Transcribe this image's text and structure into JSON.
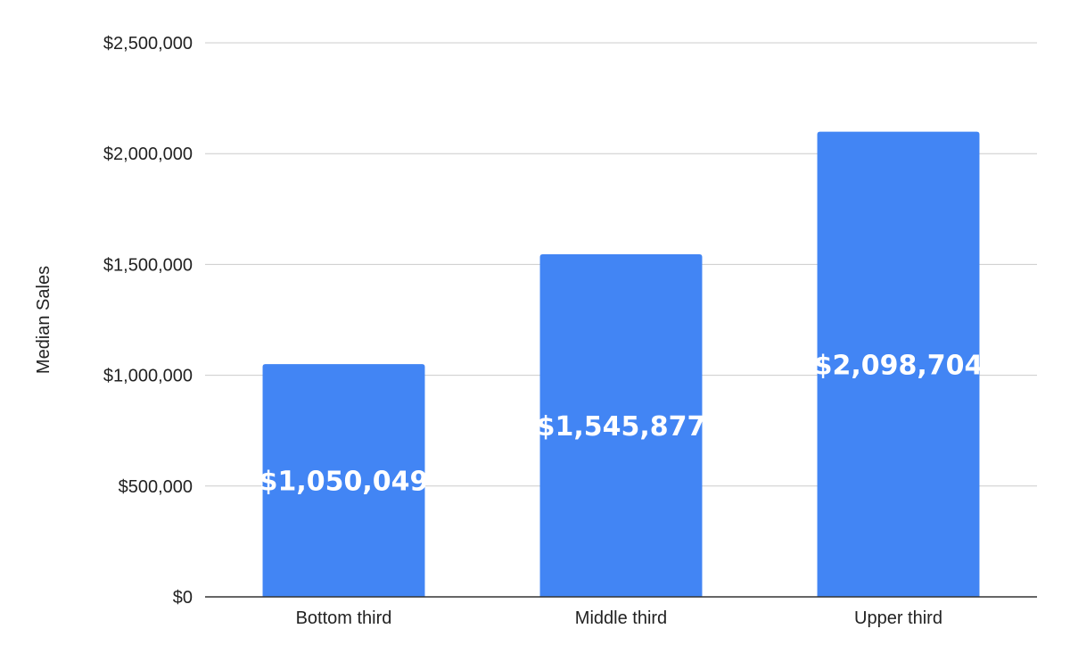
{
  "chart_data": {
    "type": "bar",
    "title": "",
    "xlabel": "",
    "ylabel": "Median Sales",
    "categories": [
      "Bottom third",
      "Middle third",
      "Upper third"
    ],
    "values": [
      1050049,
      1545877,
      2098704
    ],
    "data_labels": [
      "$1,050,049",
      "$1,545,877",
      "$2,098,704"
    ],
    "ylim": [
      0,
      2500000
    ],
    "yticks": [
      0,
      500000,
      1000000,
      1500000,
      2000000,
      2500000
    ],
    "ytick_labels": [
      "$0",
      "$500,000",
      "$1,000,000",
      "$1,500,000",
      "$2,000,000",
      "$2,500,000"
    ],
    "grid": true,
    "legend": "none",
    "bar_color": "#4285f4",
    "grid_color": "#cccccc",
    "baseline_color": "#333333",
    "data_label_color": "#ffffff"
  }
}
